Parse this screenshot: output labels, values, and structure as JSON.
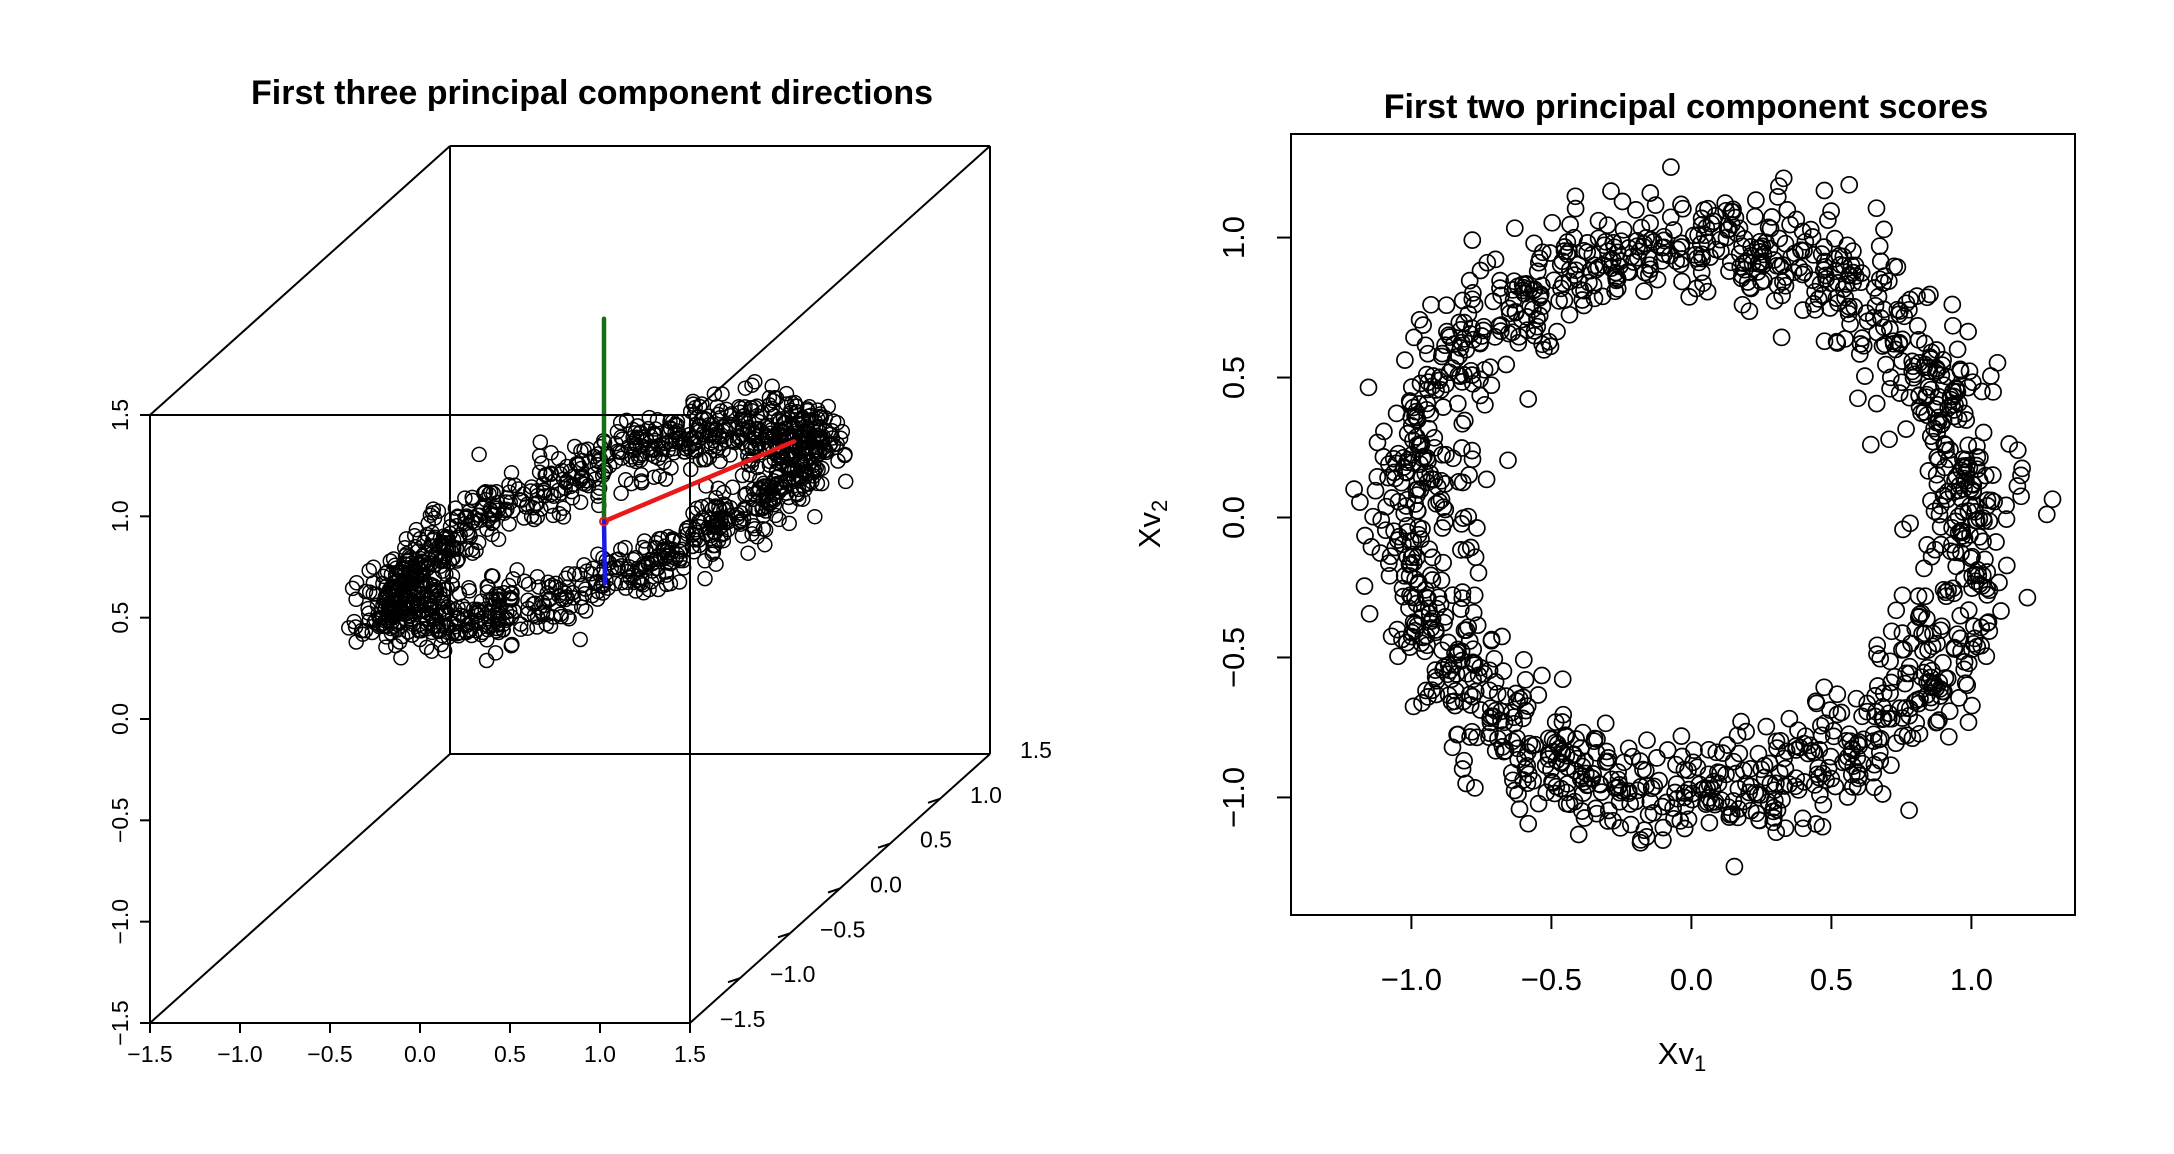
{
  "chart_data": [
    {
      "type": "scatter",
      "subtype": "3d-scatter",
      "title": "First three principal component directions",
      "x_ticks": [
        "−1.5",
        "−1.0",
        "−0.5",
        "0.0",
        "0.5",
        "1.0",
        "1.5"
      ],
      "y_ticks": [
        "−1.5",
        "−1.0",
        "−0.5",
        "0.0",
        "0.5",
        "1.0",
        "1.5"
      ],
      "z_ticks": [
        "−1.5",
        "−1.0",
        "−0.5",
        "0.0",
        "0.5",
        "1.0",
        "1.5"
      ],
      "xlim": [
        -1.5,
        1.5
      ],
      "ylim": [
        -1.5,
        1.5
      ],
      "zlim": [
        -1.5,
        1.5
      ],
      "description_points": {
        "shape": "noisy tilted ring",
        "center": [
          0.3,
          -0.2,
          0.4
        ],
        "radius": 1.0,
        "noise_sd": 0.1,
        "n_points": 1400,
        "marker": "open circle",
        "color": "#000000"
      },
      "direction_vectors": [
        {
          "color": "#e8191b",
          "from": [
            0.3,
            -0.2,
            0.4
          ],
          "to": [
            1.3,
            -0.1,
            0.75
          ]
        },
        {
          "color": "#157015",
          "from": [
            0.3,
            -0.2,
            0.4
          ],
          "to": [
            0.3,
            -0.2,
            1.4
          ]
        },
        {
          "color": "#1a1ae6",
          "from": [
            0.3,
            -0.2,
            0.4
          ],
          "to": [
            0.5,
            -0.55,
            0.25
          ]
        }
      ],
      "grid": false
    },
    {
      "type": "scatter",
      "title": "First two principal component scores",
      "xlabel": "Xv",
      "xlabel_sub": "1",
      "ylabel": "Xv",
      "ylabel_sub": "2",
      "x_ticks": [
        -1.0,
        -0.5,
        0.0,
        0.5,
        1.0
      ],
      "y_ticks": [
        -1.0,
        -0.5,
        0.0,
        0.5,
        1.0
      ],
      "x_tick_labels": [
        "−1.0",
        "−0.5",
        "0.0",
        "0.5",
        "1.0"
      ],
      "y_tick_labels": [
        "−1.0",
        "−0.5",
        "0.0",
        "0.5",
        "1.0"
      ],
      "xlim": [
        -1.43,
        1.37
      ],
      "ylim": [
        -1.42,
        1.37
      ],
      "points": {
        "shape": "noisy ring",
        "center": [
          0.0,
          0.0
        ],
        "radius": 1.0,
        "noise_sd": 0.1,
        "n_points": 1400,
        "marker": "open circle",
        "color": "#000000"
      },
      "grid": false
    }
  ]
}
